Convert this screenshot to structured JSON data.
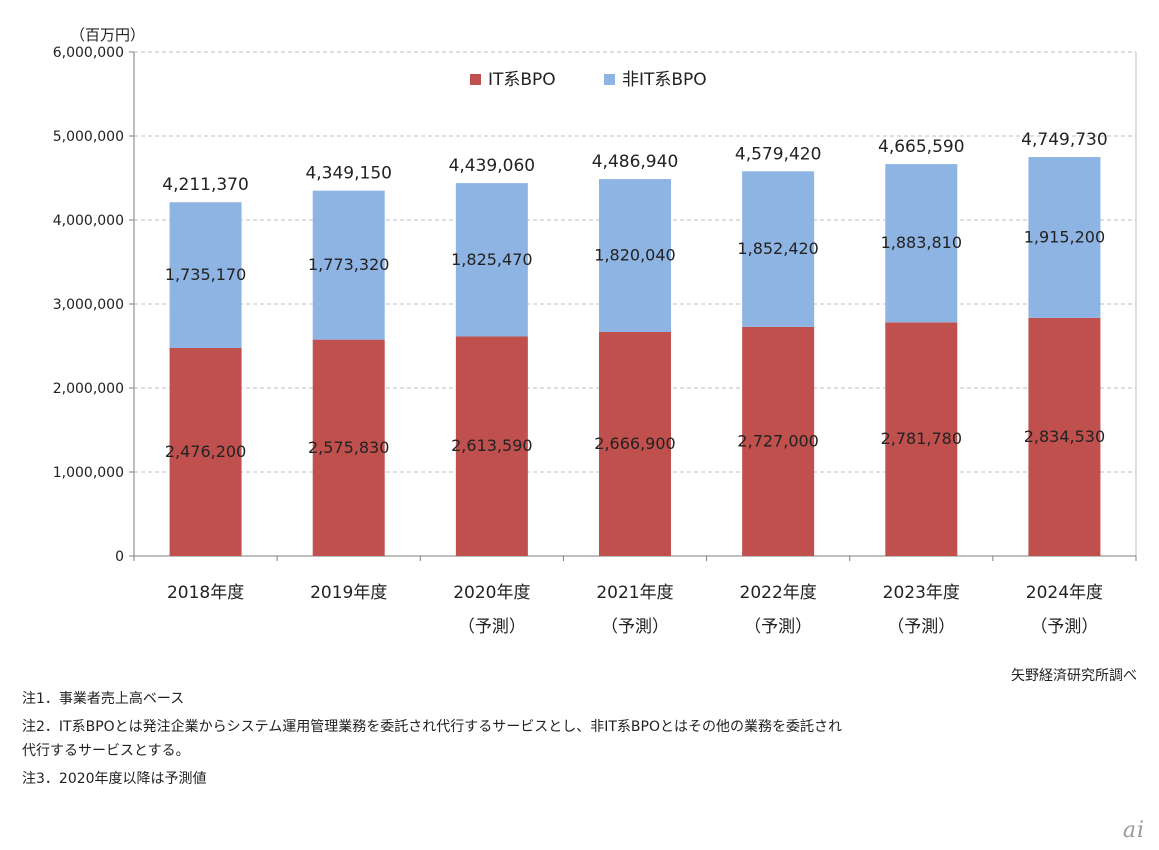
{
  "chart_data": {
    "type": "bar",
    "stacked": true,
    "unit_label": "（百万円）",
    "categories": [
      "2018年度",
      "2019年度",
      "2020年度",
      "2021年度",
      "2022年度",
      "2023年度",
      "2024年度"
    ],
    "category_sublabels": [
      "",
      "",
      "（予測）",
      "（予測）",
      "（予測）",
      "（予測）",
      "（予測）"
    ],
    "series": [
      {
        "name": "IT系BPO",
        "color": "#c0504d",
        "values": [
          2476200,
          2575830,
          2613590,
          2666900,
          2727000,
          2781780,
          2834530
        ],
        "labels": [
          "2,476,200",
          "2,575,830",
          "2,613,590",
          "2,666,900",
          "2,727,000",
          "2,781,780",
          "2,834,530"
        ]
      },
      {
        "name": "非IT系BPO",
        "color": "#8eb4e3",
        "values": [
          1735170,
          1773320,
          1825470,
          1820040,
          1852420,
          1883810,
          1915200
        ],
        "labels": [
          "1,735,170",
          "1,773,320",
          "1,825,470",
          "1,820,040",
          "1,852,420",
          "1,883,810",
          "1,915,200"
        ]
      }
    ],
    "totals": [
      4211370,
      4349150,
      4439060,
      4486940,
      4579420,
      4665590,
      4749730
    ],
    "total_labels": [
      "4,211,370",
      "4,349,150",
      "4,439,060",
      "4,486,940",
      "4,579,420",
      "4,665,590",
      "4,749,730"
    ],
    "ylim": [
      0,
      6000000
    ],
    "yticks": [
      0,
      1000000,
      2000000,
      3000000,
      4000000,
      5000000,
      6000000
    ],
    "ytick_labels": [
      "0",
      "1,000,000",
      "2,000,000",
      "3,000,000",
      "4,000,000",
      "5,000,000",
      "6,000,000"
    ],
    "grid": true,
    "legend_position": "top-center"
  },
  "source": "矢野経済研究所調べ",
  "notes": [
    "注1．事業者売上高ベース",
    "注2．IT系BPOとは発注企業からシステム運用管理業務を委託され代行するサービスとし、非IT系BPOとはその他の業務を委託され",
    "代行するサービスとする。",
    "注3．2020年度以降は予測値"
  ],
  "logo_text": "ai"
}
